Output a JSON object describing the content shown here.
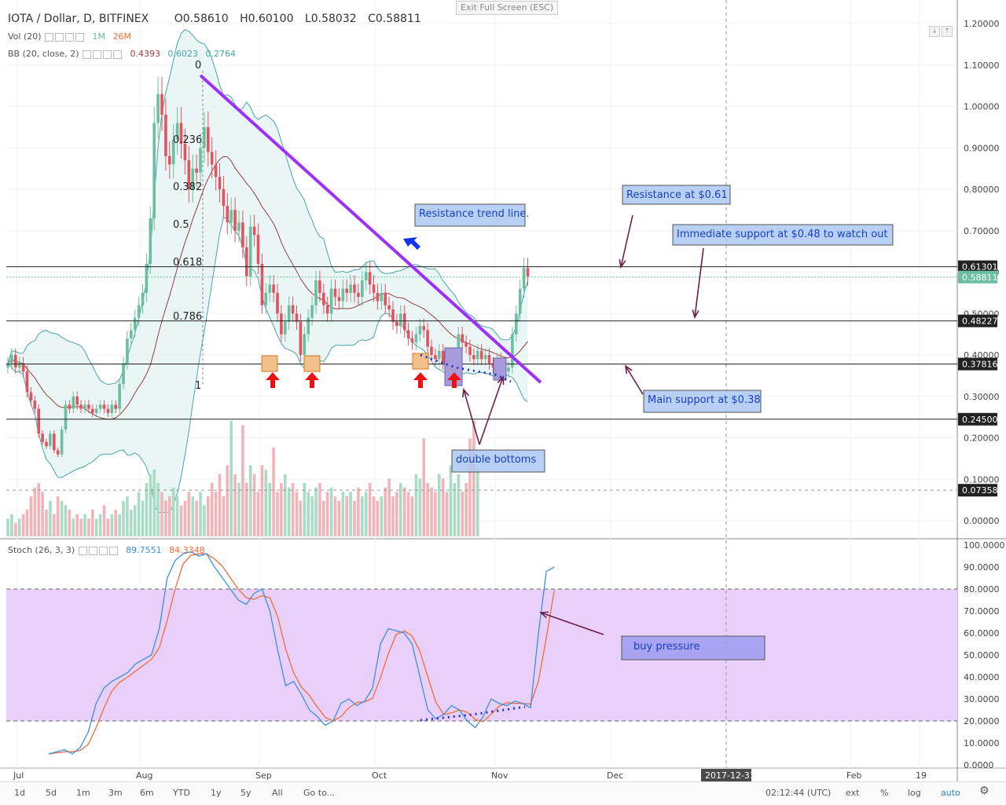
{
  "header": {
    "title": "IOTA / Dollar, D, BITFINEX",
    "open": "O0.58610",
    "high": "H0.60100",
    "low": "L0.58032",
    "close": "C0.58811"
  },
  "exit_fullscreen": "Exit Full Screen (ESC)",
  "indicators": {
    "vol": {
      "name": "Vol (20)",
      "v1": "1M",
      "v2": "26M"
    },
    "bb": {
      "name": "BB (20, close, 2)",
      "v1": "0.4393",
      "v2": "0.6023",
      "v3": "0.2764"
    },
    "stoch": {
      "name": "Stoch (26, 3, 3)",
      "v1": "89.7551",
      "v2": "84.3348"
    }
  },
  "price_axis": [
    "1.20000",
    "1.10000",
    "1.00000",
    "0.90000",
    "0.80000",
    "0.70000",
    "0.60000",
    "0.50000",
    "0.40000",
    "0.30000",
    "0.20000",
    "0.10000",
    "0.00000"
  ],
  "price_tags": [
    {
      "text": "0.61301",
      "style": "dark"
    },
    {
      "text": "0.58811",
      "style": "green"
    },
    {
      "text": "0.48227",
      "style": "dark"
    },
    {
      "text": "0.37816",
      "style": "dark"
    },
    {
      "text": "0.24500",
      "style": "dark"
    },
    {
      "text": "0.07358",
      "style": "dark"
    }
  ],
  "stoch_axis": [
    "100.0000",
    "90.0000",
    "80.0000",
    "70.0000",
    "60.0000",
    "50.0000",
    "40.0000",
    "30.0000",
    "20.0000",
    "10.0000",
    "0.0000"
  ],
  "time_axis": [
    "Jul",
    "Aug",
    "Sep",
    "Oct",
    "Nov",
    "Dec",
    "2017-12-31",
    "Feb",
    "19"
  ],
  "fib_labels": [
    "0",
    "0.236",
    "0.382",
    "0.5",
    "0.618",
    "0.786",
    "1"
  ],
  "annotations": {
    "resistance": "Resistance at $0.61",
    "immediate_support": "Immediate support at $0.48 to watch out",
    "trend_line": "Resistance trend line.",
    "main_support": "Main support at $0.38",
    "double_bottoms": "double bottoms",
    "buy_pressure": "buy pressure"
  },
  "bottom_bar": {
    "ranges": [
      "1d",
      "5d",
      "1m",
      "3m",
      "6m",
      "YTD",
      "1y",
      "5y",
      "All"
    ],
    "goto": "Go to...",
    "time": "02:12:44 (UTC)",
    "ext": "ext",
    "pct": "%",
    "log": "log",
    "auto": "auto"
  },
  "colors": {
    "up": "#6bbf9e",
    "down": "#e0535f",
    "trend": "#9b30ff",
    "band": "#4aa5a7",
    "basis": "#9b3b3b",
    "stoch_k": "#3d8fe0",
    "stoch_d": "#f26b3a",
    "stoch_bg": "#e8d0fa",
    "box": "#aac8f2"
  },
  "chart_data": [
    {
      "type": "candlestick",
      "title": "IOTA / Dollar, D, BITFINEX",
      "ylim": [
        0,
        1.2
      ],
      "x": [
        "Jul 1",
        "Jul 2",
        "Jul 3",
        "Jul 4",
        "Jul 5",
        "Jul 6",
        "Jul 7",
        "Jul 8",
        "Jul 9",
        "Jul 10",
        "Jul 11",
        "Jul 12",
        "Jul 13",
        "Jul 14",
        "Jul 15",
        "Jul 16",
        "Jul 17",
        "Jul 18",
        "Jul 19",
        "Jul 20",
        "Jul 21",
        "Jul 22",
        "Jul 23",
        "Jul 24",
        "Jul 25",
        "Jul 26",
        "Jul 27",
        "Jul 28",
        "Jul 29",
        "Jul 30",
        "Jul 31",
        "Aug 1",
        "Aug 2",
        "Aug 3",
        "Aug 4",
        "Aug 5",
        "Aug 6",
        "Aug 7",
        "Aug 8",
        "Aug 9",
        "Aug 10",
        "Aug 11",
        "Aug 12",
        "Aug 13",
        "Aug 14",
        "Aug 15",
        "Aug 16",
        "Aug 17",
        "Aug 18",
        "Aug 19",
        "Aug 20",
        "Aug 21",
        "Aug 22",
        "Aug 23",
        "Aug 24",
        "Aug 25",
        "Aug 26",
        "Aug 27",
        "Aug 28",
        "Aug 29",
        "Aug 30",
        "Aug 31",
        "Sep 1",
        "Sep 2",
        "Sep 3",
        "Sep 4",
        "Sep 5",
        "Sep 6",
        "Sep 7",
        "Sep 8",
        "Sep 9",
        "Sep 10",
        "Sep 11",
        "Sep 12",
        "Sep 13",
        "Sep 14",
        "Sep 15",
        "Sep 16",
        "Sep 17",
        "Sep 18",
        "Sep 19",
        "Sep 20",
        "Sep 21",
        "Sep 22",
        "Sep 23",
        "Sep 24",
        "Sep 25",
        "Sep 26",
        "Sep 27",
        "Sep 28",
        "Sep 29",
        "Sep 30",
        "Oct 1",
        "Oct 2",
        "Oct 3",
        "Oct 4",
        "Oct 5",
        "Oct 6",
        "Oct 7",
        "Oct 8",
        "Oct 9",
        "Oct 10",
        "Oct 11",
        "Oct 12",
        "Oct 13",
        "Oct 14",
        "Oct 15",
        "Oct 16",
        "Oct 17",
        "Oct 18",
        "Oct 19",
        "Oct 20",
        "Oct 21",
        "Oct 22",
        "Oct 23",
        "Oct 24",
        "Oct 25",
        "Oct 26",
        "Oct 27",
        "Oct 28",
        "Oct 29",
        "Oct 30",
        "Oct 31",
        "Nov 1",
        "Nov 2",
        "Nov 3",
        "Nov 4",
        "Nov 5",
        "Nov 6",
        "Nov 7",
        "Nov 8",
        "Nov 9",
        "Nov 10",
        "Nov 11",
        "Nov 12",
        "Nov 13"
      ],
      "close": [
        0.38,
        0.4,
        0.37,
        0.38,
        0.36,
        0.31,
        0.29,
        0.27,
        0.21,
        0.19,
        0.18,
        0.21,
        0.17,
        0.16,
        0.22,
        0.28,
        0.27,
        0.3,
        0.28,
        0.27,
        0.28,
        0.27,
        0.26,
        0.27,
        0.28,
        0.27,
        0.26,
        0.28,
        0.27,
        0.33,
        0.38,
        0.44,
        0.46,
        0.49,
        0.52,
        0.55,
        0.62,
        0.73,
        0.96,
        1.03,
        0.98,
        0.88,
        0.86,
        0.92,
        0.96,
        0.91,
        0.87,
        0.8,
        0.85,
        0.84,
        0.9,
        0.95,
        0.89,
        0.86,
        0.83,
        0.8,
        0.76,
        0.72,
        0.75,
        0.7,
        0.72,
        0.66,
        0.59,
        0.71,
        0.69,
        0.62,
        0.52,
        0.55,
        0.57,
        0.55,
        0.5,
        0.45,
        0.48,
        0.52,
        0.5,
        0.48,
        0.4,
        0.45,
        0.49,
        0.52,
        0.58,
        0.55,
        0.52,
        0.5,
        0.56,
        0.54,
        0.53,
        0.56,
        0.55,
        0.57,
        0.55,
        0.54,
        0.58,
        0.6,
        0.57,
        0.55,
        0.53,
        0.55,
        0.52,
        0.51,
        0.48,
        0.47,
        0.5,
        0.46,
        0.44,
        0.43,
        0.45,
        0.47,
        0.46,
        0.42,
        0.4,
        0.39,
        0.41,
        0.38,
        0.37,
        0.38,
        0.39,
        0.45,
        0.43,
        0.42,
        0.4,
        0.39,
        0.41,
        0.39,
        0.4,
        0.38,
        0.37,
        0.39,
        0.38,
        0.36,
        0.37,
        0.45,
        0.5,
        0.56,
        0.61,
        0.59
      ],
      "volume_m": [
        4,
        5,
        3,
        4,
        5,
        6,
        9,
        11,
        12,
        10,
        6,
        8,
        5,
        9,
        8,
        7,
        6,
        4,
        5,
        4,
        5,
        4,
        6,
        4,
        5,
        7,
        4,
        5,
        6,
        5,
        8,
        9,
        6,
        7,
        10,
        8,
        12,
        14,
        15,
        12,
        10,
        8,
        9,
        11,
        9,
        7,
        8,
        10,
        9,
        8,
        10,
        7,
        9,
        12,
        10,
        14,
        9,
        16,
        26,
        14,
        12,
        25,
        12,
        16,
        14,
        10,
        16,
        15,
        12,
        20,
        10,
        12,
        14,
        11,
        12,
        10,
        8,
        12,
        10,
        9,
        11,
        12,
        8,
        10,
        11,
        9,
        8,
        10,
        9,
        10,
        8,
        11,
        9,
        10,
        12,
        9,
        8,
        9,
        11,
        13,
        9,
        10,
        12,
        11,
        10,
        9,
        14,
        13,
        22,
        12,
        11,
        10,
        14,
        13,
        10,
        16,
        12,
        14,
        10,
        12,
        22,
        26,
        15
      ],
      "stoch_k": [
        5,
        6,
        7,
        5,
        8,
        15,
        28,
        35,
        38,
        40,
        42,
        46,
        48,
        50,
        62,
        85,
        93,
        96,
        97,
        95,
        96,
        90,
        85,
        80,
        75,
        73,
        78,
        80,
        70,
        52,
        36,
        38,
        32,
        25,
        22,
        18,
        20,
        28,
        30,
        27,
        29,
        35,
        55,
        62,
        61,
        60,
        55,
        40,
        25,
        21,
        23,
        27,
        25,
        20,
        17,
        22,
        30,
        28,
        27,
        29,
        28,
        26,
        60,
        88,
        90
      ]
    }
  ]
}
